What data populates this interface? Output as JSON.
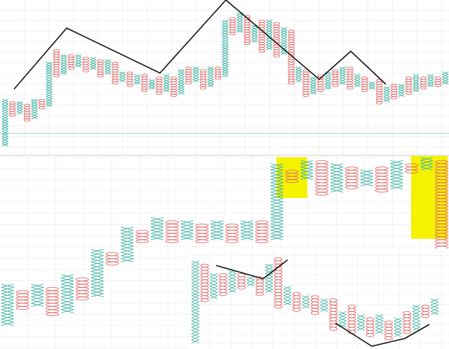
{
  "chart_data": [
    {
      "type": "pnf",
      "colors": {
        "X": "#3fb3a3",
        "O": "#e36a6a"
      },
      "ylim": [
        0,
        60
      ],
      "columns": [
        {
          "kind": "X",
          "low": 2,
          "high": 20
        },
        {
          "kind": "O",
          "low": 14,
          "high": 19
        },
        {
          "kind": "X",
          "low": 15,
          "high": 19
        },
        {
          "kind": "O",
          "low": 12,
          "high": 18
        },
        {
          "kind": "X",
          "low": 13,
          "high": 20
        },
        {
          "kind": "O",
          "low": 17,
          "high": 20
        },
        {
          "kind": "X",
          "low": 18,
          "high": 35
        },
        {
          "kind": "O",
          "low": 30,
          "high": 40
        },
        {
          "kind": "X",
          "low": 31,
          "high": 38
        },
        {
          "kind": "O",
          "low": 33,
          "high": 38
        },
        {
          "kind": "X",
          "low": 34,
          "high": 38
        },
        {
          "kind": "O",
          "low": 32,
          "high": 37
        },
        {
          "kind": "X",
          "low": 33,
          "high": 37
        },
        {
          "kind": "O",
          "low": 30,
          "high": 36
        },
        {
          "kind": "X",
          "low": 31,
          "high": 36
        },
        {
          "kind": "O",
          "low": 27,
          "high": 35
        },
        {
          "kind": "X",
          "low": 28,
          "high": 31
        },
        {
          "kind": "O",
          "low": 26,
          "high": 31
        },
        {
          "kind": "X",
          "low": 27,
          "high": 30
        },
        {
          "kind": "O",
          "low": 24,
          "high": 30
        },
        {
          "kind": "X",
          "low": 25,
          "high": 28
        },
        {
          "kind": "O",
          "low": 23,
          "high": 29
        },
        {
          "kind": "X",
          "low": 24,
          "high": 30
        },
        {
          "kind": "O",
          "low": 22,
          "high": 29
        },
        {
          "kind": "X",
          "low": 23,
          "high": 32
        },
        {
          "kind": "O",
          "low": 27,
          "high": 33
        },
        {
          "kind": "X",
          "low": 28,
          "high": 33
        },
        {
          "kind": "O",
          "low": 25,
          "high": 32
        },
        {
          "kind": "X",
          "low": 26,
          "high": 33
        },
        {
          "kind": "O",
          "low": 29,
          "high": 33
        },
        {
          "kind": "X",
          "low": 30,
          "high": 52
        },
        {
          "kind": "O",
          "low": 47,
          "high": 53
        },
        {
          "kind": "X",
          "low": 48,
          "high": 55
        },
        {
          "kind": "O",
          "low": 43,
          "high": 54
        },
        {
          "kind": "X",
          "low": 44,
          "high": 50
        },
        {
          "kind": "O",
          "low": 40,
          "high": 52
        },
        {
          "kind": "X",
          "low": 41,
          "high": 52
        },
        {
          "kind": "O",
          "low": 38,
          "high": 51
        },
        {
          "kind": "X",
          "low": 39,
          "high": 49
        },
        {
          "kind": "O",
          "low": 27,
          "high": 48
        },
        {
          "kind": "X",
          "low": 28,
          "high": 33
        },
        {
          "kind": "O",
          "low": 22,
          "high": 32
        },
        {
          "kind": "X",
          "low": 23,
          "high": 29
        },
        {
          "kind": "O",
          "low": 24,
          "high": 30
        },
        {
          "kind": "X",
          "low": 25,
          "high": 31
        },
        {
          "kind": "O",
          "low": 26,
          "high": 32
        },
        {
          "kind": "X",
          "low": 27,
          "high": 33
        },
        {
          "kind": "O",
          "low": 25,
          "high": 33
        },
        {
          "kind": "X",
          "low": 26,
          "high": 30
        },
        {
          "kind": "O",
          "low": 24,
          "high": 29
        },
        {
          "kind": "X",
          "low": 25,
          "high": 27
        },
        {
          "kind": "O",
          "low": 19,
          "high": 28
        },
        {
          "kind": "X",
          "low": 20,
          "high": 25
        },
        {
          "kind": "O",
          "low": 21,
          "high": 26
        },
        {
          "kind": "X",
          "low": 22,
          "high": 26
        },
        {
          "kind": "O",
          "low": 23,
          "high": 29
        },
        {
          "kind": "X",
          "low": 24,
          "high": 30
        },
        {
          "kind": "O",
          "low": 25,
          "high": 29
        },
        {
          "kind": "X",
          "low": 26,
          "high": 30
        },
        {
          "kind": "O",
          "low": 26,
          "high": 29
        },
        {
          "kind": "X",
          "low": 27,
          "high": 31
        }
      ]
    },
    {
      "type": "pnf",
      "colors": {
        "X": "#3fb3a3",
        "O": "#e36a6a"
      },
      "ylim": [
        0,
        60
      ],
      "columns": [
        {
          "kind": "X",
          "low": 7,
          "high": 19
        },
        {
          "kind": "O",
          "low": 12,
          "high": 17
        },
        {
          "kind": "X",
          "low": 13,
          "high": 19
        },
        {
          "kind": "O",
          "low": 10,
          "high": 18
        },
        {
          "kind": "X",
          "low": 11,
          "high": 22
        },
        {
          "kind": "O",
          "low": 15,
          "high": 21
        },
        {
          "kind": "X",
          "low": 16,
          "high": 30
        },
        {
          "kind": "O",
          "low": 26,
          "high": 29
        },
        {
          "kind": "X",
          "low": 27,
          "high": 37
        },
        {
          "kind": "O",
          "low": 33,
          "high": 36
        },
        {
          "kind": "X",
          "low": 34,
          "high": 40
        },
        {
          "kind": "O",
          "low": 33,
          "high": 39
        },
        {
          "kind": "X",
          "low": 34,
          "high": 39
        },
        {
          "kind": "O",
          "low": 33,
          "high": 38
        },
        {
          "kind": "X",
          "low": 34,
          "high": 39
        },
        {
          "kind": "O",
          "low": 33,
          "high": 38
        },
        {
          "kind": "X",
          "low": 34,
          "high": 39
        },
        {
          "kind": "O",
          "low": 33,
          "high": 39
        },
        {
          "kind": "X",
          "low": 34,
          "high": 57
        },
        {
          "kind": "O",
          "low": 52,
          "high": 55
        },
        {
          "kind": "X",
          "low": 53,
          "high": 58
        },
        {
          "kind": "O",
          "low": 48,
          "high": 58
        },
        {
          "kind": "X",
          "low": 49,
          "high": 57
        },
        {
          "kind": "O",
          "low": 50,
          "high": 56
        },
        {
          "kind": "X",
          "low": 51,
          "high": 55
        },
        {
          "kind": "O",
          "low": 49,
          "high": 56
        },
        {
          "kind": "X",
          "low": 50,
          "high": 58
        },
        {
          "kind": "O",
          "low": 55,
          "high": 57
        },
        {
          "kind": "X",
          "low": 56,
          "high": 59
        },
        {
          "kind": "O",
          "low": 26,
          "high": 58
        }
      ]
    },
    {
      "type": "pnf",
      "colors": {
        "X": "#3fb3a3",
        "O": "#e36a6a"
      },
      "ylim": [
        0,
        30
      ],
      "columns": [
        {
          "kind": "X",
          "low": 1,
          "high": 26
        },
        {
          "kind": "O",
          "low": 14,
          "high": 25
        },
        {
          "kind": "X",
          "low": 15,
          "high": 22
        },
        {
          "kind": "O",
          "low": 16,
          "high": 22
        },
        {
          "kind": "X",
          "low": 17,
          "high": 23
        },
        {
          "kind": "O",
          "low": 18,
          "high": 22
        },
        {
          "kind": "X",
          "low": 19,
          "high": 21
        },
        {
          "kind": "O",
          "low": 16,
          "high": 21
        },
        {
          "kind": "X",
          "low": 17,
          "high": 25
        },
        {
          "kind": "O",
          "low": 12,
          "high": 27
        },
        {
          "kind": "X",
          "low": 13,
          "high": 18
        },
        {
          "kind": "O",
          "low": 11,
          "high": 16
        },
        {
          "kind": "X",
          "low": 12,
          "high": 15
        },
        {
          "kind": "O",
          "low": 10,
          "high": 15
        },
        {
          "kind": "X",
          "low": 11,
          "high": 14
        },
        {
          "kind": "O",
          "low": 5,
          "high": 14
        },
        {
          "kind": "X",
          "low": 6,
          "high": 10
        },
        {
          "kind": "O",
          "low": 4,
          "high": 12
        },
        {
          "kind": "X",
          "low": 5,
          "high": 9
        },
        {
          "kind": "O",
          "low": 3,
          "high": 8
        },
        {
          "kind": "X",
          "low": 4,
          "high": 9
        },
        {
          "kind": "O",
          "low": 2,
          "high": 7
        },
        {
          "kind": "X",
          "low": 3,
          "high": 8
        },
        {
          "kind": "O",
          "low": 4,
          "high": 10
        },
        {
          "kind": "X",
          "low": 5,
          "high": 12
        },
        {
          "kind": "O",
          "low": 9,
          "high": 12
        },
        {
          "kind": "X",
          "low": 10,
          "high": 14
        }
      ]
    }
  ]
}
